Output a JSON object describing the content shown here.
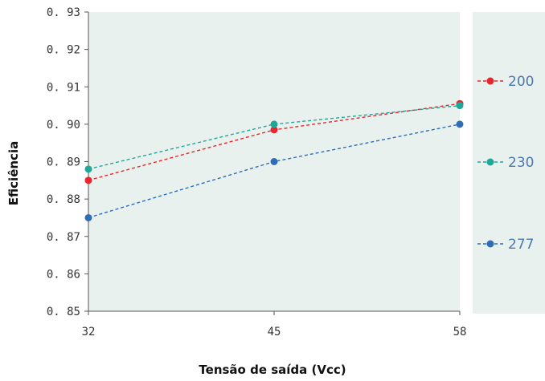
{
  "colors": {
    "plot_background": "#e9f1ee",
    "legend_background": "#e9f1ee",
    "axis": "#555555"
  },
  "chart_data": {
    "type": "line",
    "title": "",
    "xlabel": "Tensão de saída (Vcc)",
    "ylabel": "Eficiência",
    "x": [
      32,
      45,
      58
    ],
    "x_tick_labels": [
      "32",
      "45",
      "58"
    ],
    "xlim": [
      32,
      58
    ],
    "ylim": [
      0.85,
      0.93
    ],
    "y_ticks": [
      0.85,
      0.86,
      0.87,
      0.88,
      0.89,
      0.9,
      0.91,
      0.92,
      0.93
    ],
    "y_tick_labels": [
      "0. 85",
      "0. 86",
      "0. 87",
      "0. 88",
      "0. 89",
      "0. 90",
      "0. 91",
      "0. 92",
      "0. 93"
    ],
    "grid": false,
    "legend_position": "right",
    "line_style": "dashed",
    "series": [
      {
        "name": "200",
        "color": "#e8262b",
        "values": [
          0.885,
          0.8985,
          0.9055
        ]
      },
      {
        "name": "230",
        "color": "#1fa89a",
        "values": [
          0.888,
          0.9,
          0.905
        ]
      },
      {
        "name": "277",
        "color": "#2f6db5",
        "values": [
          0.875,
          0.89,
          0.9
        ]
      }
    ]
  }
}
